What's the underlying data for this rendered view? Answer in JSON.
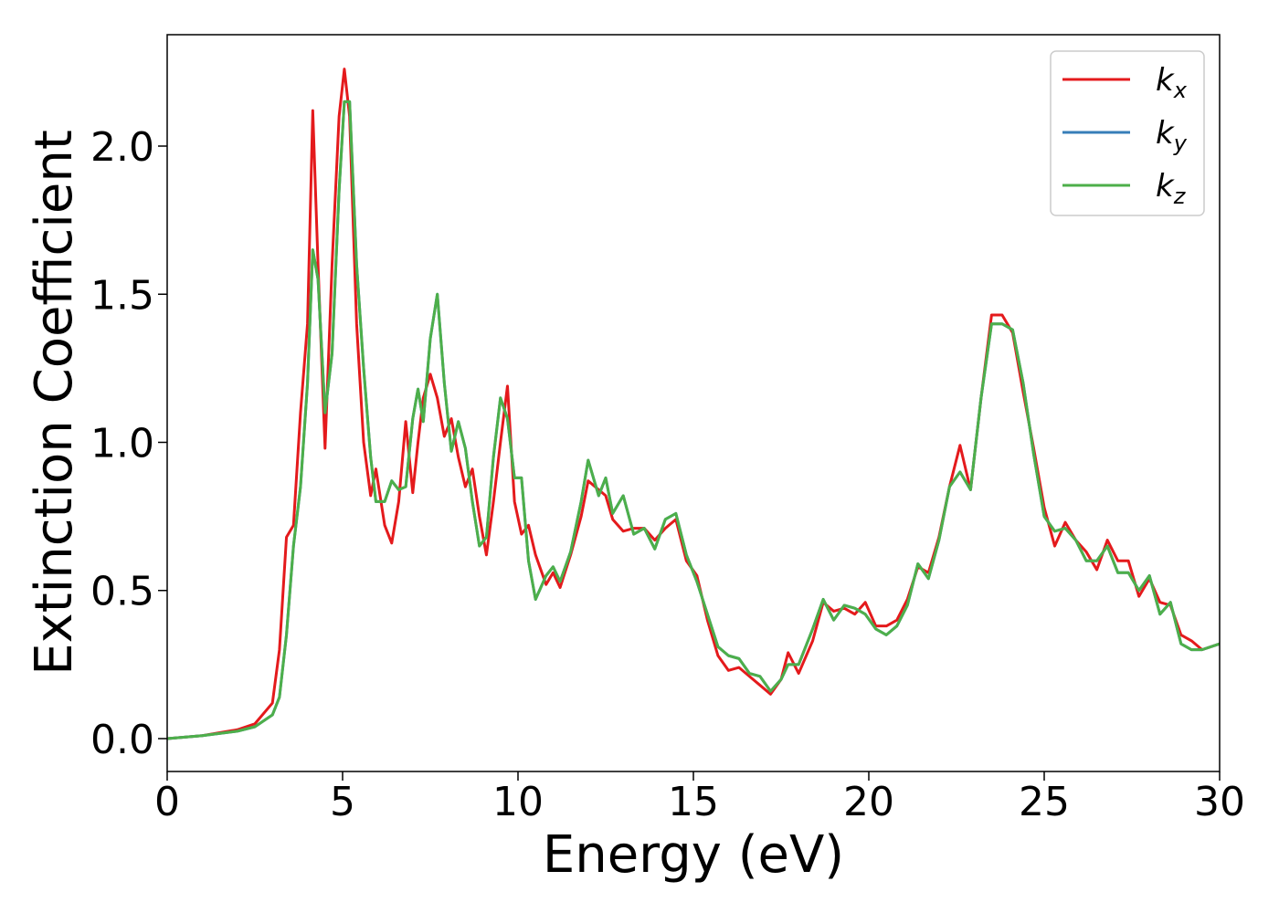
{
  "chart_data": {
    "type": "line",
    "xlabel": "Energy (eV)",
    "ylabel": "Extinction Coefficient",
    "x": [
      0,
      1,
      2,
      2.5,
      3,
      3.2,
      3.4,
      3.6,
      3.8,
      4.0,
      4.15,
      4.3,
      4.5,
      4.7,
      4.9,
      5.05,
      5.2,
      5.4,
      5.6,
      5.8,
      5.95,
      6.2,
      6.4,
      6.6,
      6.8,
      7.0,
      7.15,
      7.3,
      7.5,
      7.7,
      7.9,
      8.1,
      8.3,
      8.5,
      8.7,
      8.9,
      9.1,
      9.3,
      9.5,
      9.7,
      9.9,
      10.1,
      10.3,
      10.5,
      10.8,
      11.0,
      11.2,
      11.5,
      11.8,
      12.0,
      12.3,
      12.5,
      12.7,
      13.0,
      13.3,
      13.6,
      13.9,
      14.2,
      14.5,
      14.8,
      15.1,
      15.4,
      15.7,
      16.0,
      16.3,
      16.6,
      16.9,
      17.2,
      17.5,
      17.7,
      18.0,
      18.4,
      18.7,
      19.0,
      19.3,
      19.6,
      19.9,
      20.2,
      20.5,
      20.8,
      21.1,
      21.4,
      21.7,
      22.0,
      22.3,
      22.6,
      22.9,
      23.2,
      23.5,
      23.8,
      24.1,
      24.4,
      24.7,
      25.0,
      25.3,
      25.6,
      25.9,
      26.2,
      26.5,
      26.8,
      27.1,
      27.4,
      27.7,
      28.0,
      28.3,
      28.6,
      28.9,
      29.2,
      29.5,
      30.0
    ],
    "series": [
      {
        "name": "kx",
        "color": "#e41a1c",
        "values": [
          0,
          0.01,
          0.03,
          0.05,
          0.12,
          0.3,
          0.68,
          0.72,
          1.1,
          1.4,
          2.12,
          1.6,
          0.98,
          1.6,
          2.1,
          2.26,
          2.1,
          1.4,
          1.0,
          0.82,
          0.91,
          0.72,
          0.66,
          0.8,
          1.07,
          0.83,
          1.0,
          1.15,
          1.23,
          1.15,
          1.02,
          1.08,
          0.95,
          0.85,
          0.91,
          0.75,
          0.62,
          0.8,
          1.0,
          1.19,
          0.8,
          0.69,
          0.72,
          0.62,
          0.52,
          0.56,
          0.51,
          0.62,
          0.75,
          0.87,
          0.84,
          0.82,
          0.74,
          0.7,
          0.71,
          0.71,
          0.67,
          0.71,
          0.74,
          0.6,
          0.55,
          0.4,
          0.28,
          0.23,
          0.24,
          0.21,
          0.18,
          0.15,
          0.2,
          0.29,
          0.22,
          0.33,
          0.46,
          0.43,
          0.44,
          0.42,
          0.46,
          0.38,
          0.38,
          0.4,
          0.47,
          0.58,
          0.56,
          0.68,
          0.85,
          0.99,
          0.84,
          1.15,
          1.43,
          1.43,
          1.37,
          1.17,
          0.98,
          0.78,
          0.65,
          0.73,
          0.67,
          0.63,
          0.57,
          0.67,
          0.6,
          0.6,
          0.48,
          0.54,
          0.46,
          0.45,
          0.35,
          0.33,
          0.3,
          0.32
        ]
      },
      {
        "name": "ky",
        "color": "#377eb8",
        "values": [
          0,
          0.01,
          0.025,
          0.04,
          0.08,
          0.14,
          0.35,
          0.65,
          0.85,
          1.2,
          1.65,
          1.55,
          1.1,
          1.3,
          1.85,
          2.15,
          2.15,
          1.6,
          1.25,
          0.95,
          0.8,
          0.8,
          0.87,
          0.84,
          0.85,
          1.08,
          1.18,
          1.07,
          1.35,
          1.5,
          1.2,
          0.97,
          1.07,
          0.98,
          0.8,
          0.65,
          0.68,
          0.95,
          1.15,
          1.08,
          0.88,
          0.88,
          0.6,
          0.47,
          0.55,
          0.58,
          0.53,
          0.63,
          0.8,
          0.94,
          0.82,
          0.88,
          0.76,
          0.82,
          0.69,
          0.71,
          0.64,
          0.74,
          0.76,
          0.62,
          0.53,
          0.42,
          0.31,
          0.28,
          0.27,
          0.22,
          0.21,
          0.16,
          0.2,
          0.25,
          0.25,
          0.37,
          0.47,
          0.4,
          0.45,
          0.44,
          0.42,
          0.37,
          0.35,
          0.38,
          0.45,
          0.59,
          0.54,
          0.67,
          0.85,
          0.9,
          0.84,
          1.15,
          1.4,
          1.4,
          1.38,
          1.2,
          0.96,
          0.75,
          0.7,
          0.71,
          0.67,
          0.6,
          0.6,
          0.65,
          0.56,
          0.56,
          0.5,
          0.55,
          0.42,
          0.46,
          0.32,
          0.3,
          0.3,
          0.32
        ]
      },
      {
        "name": "kz",
        "color": "#4daf4a",
        "values": [
          0,
          0.01,
          0.025,
          0.04,
          0.08,
          0.14,
          0.35,
          0.65,
          0.85,
          1.2,
          1.65,
          1.55,
          1.1,
          1.3,
          1.85,
          2.15,
          2.15,
          1.6,
          1.25,
          0.95,
          0.8,
          0.8,
          0.87,
          0.84,
          0.85,
          1.08,
          1.18,
          1.07,
          1.35,
          1.5,
          1.2,
          0.97,
          1.07,
          0.98,
          0.8,
          0.65,
          0.68,
          0.95,
          1.15,
          1.08,
          0.88,
          0.88,
          0.6,
          0.47,
          0.55,
          0.58,
          0.53,
          0.63,
          0.8,
          0.94,
          0.82,
          0.88,
          0.76,
          0.82,
          0.69,
          0.71,
          0.64,
          0.74,
          0.76,
          0.62,
          0.53,
          0.42,
          0.31,
          0.28,
          0.27,
          0.22,
          0.21,
          0.16,
          0.2,
          0.25,
          0.25,
          0.37,
          0.47,
          0.4,
          0.45,
          0.44,
          0.42,
          0.37,
          0.35,
          0.38,
          0.45,
          0.59,
          0.54,
          0.67,
          0.85,
          0.9,
          0.84,
          1.15,
          1.4,
          1.4,
          1.38,
          1.2,
          0.96,
          0.75,
          0.7,
          0.71,
          0.67,
          0.6,
          0.6,
          0.65,
          0.56,
          0.56,
          0.5,
          0.55,
          0.42,
          0.46,
          0.32,
          0.3,
          0.3,
          0.32
        ]
      }
    ],
    "xlim": [
      0,
      30
    ],
    "xticks": [
      0,
      5,
      10,
      15,
      20,
      25,
      30
    ],
    "ylim": [
      -0.111,
      2.376
    ],
    "yticks": [
      {
        "value": 0,
        "label": "0.0"
      },
      0.5,
      {
        "value": 1,
        "label": "1.0"
      },
      1.5,
      {
        "value": 2,
        "label": "2.0"
      }
    ],
    "grid": false,
    "legend": "upper right"
  }
}
